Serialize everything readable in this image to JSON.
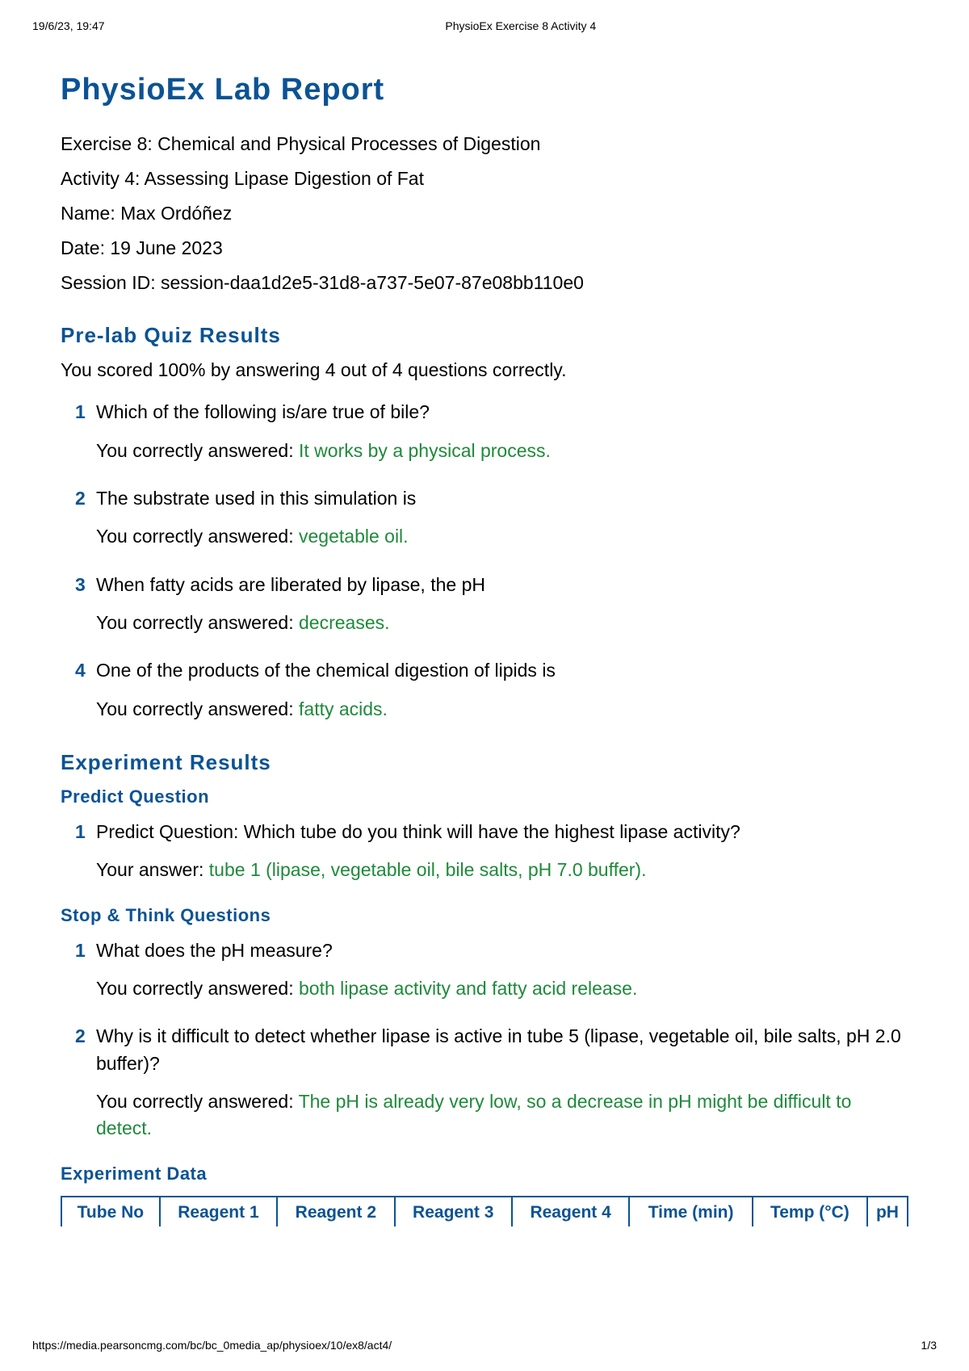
{
  "print_header": {
    "timestamp": "19/6/23, 19:47",
    "doctitle": "PhysioEx Exercise 8 Activity 4"
  },
  "title": "PhysioEx Lab Report",
  "meta": {
    "exercise": "Exercise 8: Chemical and Physical Processes of Digestion",
    "activity": "Activity 4: Assessing Lipase Digestion of Fat",
    "name": "Name: Max Ordóñez",
    "date": "Date: 19 June 2023",
    "session": "Session  ID:  session-daa1d2e5-31d8-a737-5e07-87e08bb110e0"
  },
  "prelab": {
    "heading": "Pre-lab Quiz Results",
    "score": "You scored 100% by answering 4 out of 4 questions correctly.",
    "items": [
      {
        "num": "1",
        "q": "Which of the following is/are true of bile?",
        "prefix": "You correctly answered: ",
        "ans": "It works by a physical process."
      },
      {
        "num": "2",
        "q": "The substrate used in this simulation is",
        "prefix": "You correctly answered: ",
        "ans": "vegetable oil."
      },
      {
        "num": "3",
        "q": "When fatty acids are liberated by lipase, the pH",
        "prefix": "You correctly answered: ",
        "ans": "decreases."
      },
      {
        "num": "4",
        "q": "One of the products of the chemical digestion of lipids is",
        "prefix": "You correctly answered: ",
        "ans": "fatty acids."
      }
    ]
  },
  "experiment": {
    "heading": "Experiment Results",
    "predict": {
      "heading": "Predict Question",
      "items": [
        {
          "num": "1",
          "q": "Predict Question: Which tube do you think will have the highest lipase activity?",
          "prefix": "Your answer: ",
          "ans": "tube 1 (lipase, vegetable oil, bile salts, pH 7.0 buffer)."
        }
      ]
    },
    "stopthink": {
      "heading": "Stop & Think Questions",
      "items": [
        {
          "num": "1",
          "q": "What does the pH measure?",
          "prefix": "You correctly answered: ",
          "ans": "both lipase activity and fatty acid release."
        },
        {
          "num": "2",
          "q": "Why is it difficult to detect whether lipase is active in tube 5 (lipase, vegetable oil, bile salts, pH 2.0 buffer)?",
          "prefix": "You correctly answered: ",
          "ans": "The pH is already very low, so a decrease in pH might be difficult to detect."
        }
      ]
    },
    "data": {
      "heading": "Experiment Data",
      "columns": [
        "Tube No",
        "Reagent 1",
        "Reagent 2",
        "Reagent 3",
        "Reagent 4",
        "Time (min)",
        "Temp (°C)",
        "pH"
      ]
    }
  },
  "print_footer": {
    "url": "https://media.pearsoncmg.com/bc/bc_0media_ap/physioex/10/ex8/act4/",
    "pageno": "1/3"
  },
  "colors": {
    "heading_blue": "#0b5394",
    "answer_green": "#1e8a3a",
    "text_black": "#000000",
    "background": "#ffffff"
  }
}
